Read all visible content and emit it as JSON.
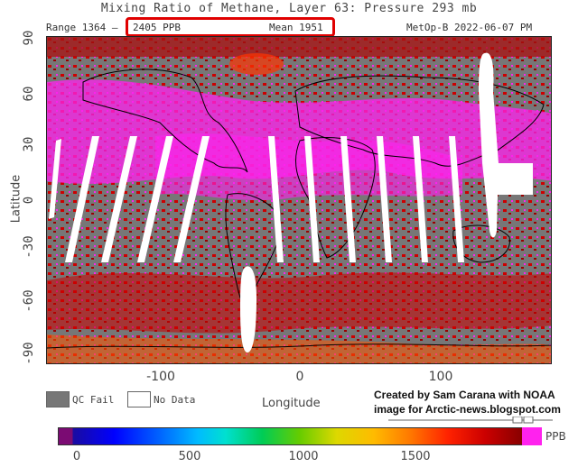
{
  "title": "Mixing Ratio of Methane, Layer 63: Pressure 293 mb",
  "header": {
    "range_label": "Range 1364 –",
    "range_max": "2405 PPB",
    "mean": "Mean 1951",
    "satellite_date": "MetOp-B  2022-06-07 PM"
  },
  "axes": {
    "y_label": "Latitude",
    "x_label": "Longitude",
    "y_ticks": [
      "90",
      "60",
      "30",
      "0",
      "-30",
      "-60",
      "-90"
    ],
    "x_ticks": [
      "-100",
      "0",
      "100"
    ]
  },
  "legend": {
    "qc_fail": "QC Fail",
    "no_data": "No Data",
    "colors": {
      "qc_fail": "#777777",
      "no_data": "#ffffff"
    }
  },
  "credit": {
    "line1": "Created by Sam Carana with NOAA",
    "line2": "image for Arctic-news.blogspot.com"
  },
  "colorbar": {
    "unit": "PPB",
    "ticks": [
      "0",
      "500",
      "1000",
      "1500"
    ],
    "colors": {
      "low": "#7b0b73",
      "high": "#ff22ee"
    }
  }
}
